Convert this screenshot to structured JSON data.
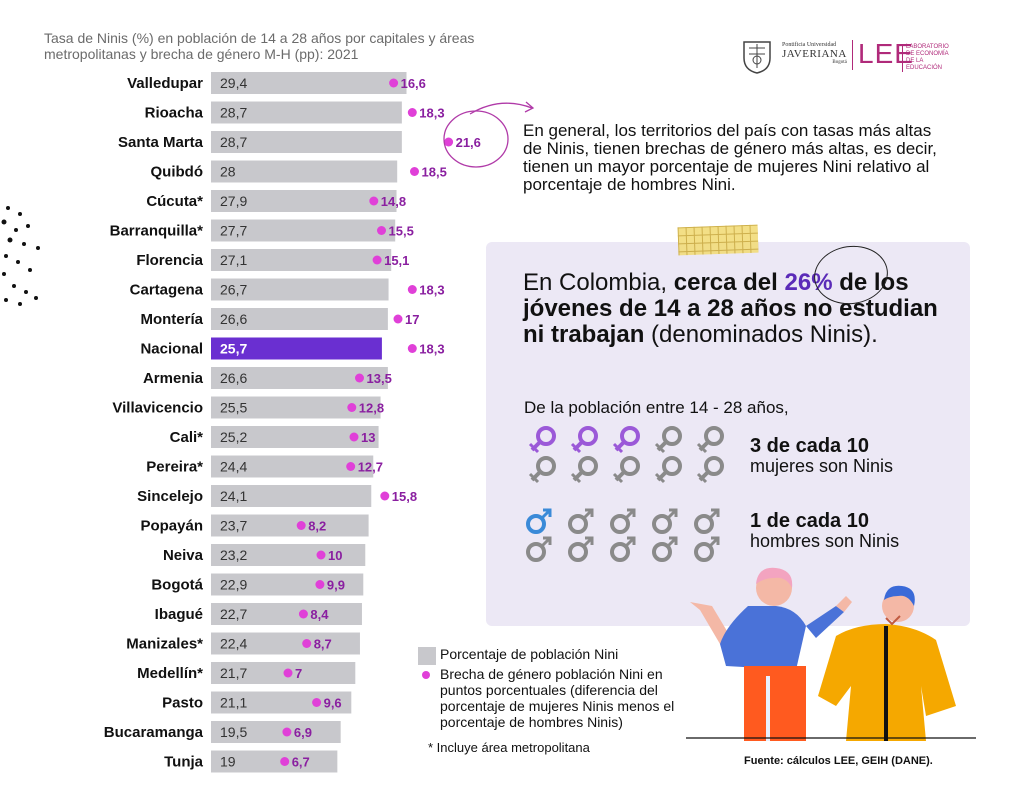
{
  "title": "Tasa de Ninis (%) en población de 14 a 28 años por capitales y áreas metropolitanas y brecha de género M-H (pp): 2021",
  "logos": {
    "javeriana_line1": "Pontificia Universidad",
    "javeriana_line2": "JAVERIANA",
    "javeriana_line3": "Bogotá",
    "lee": "LEE",
    "lee_sub": "LABORATORIO DE ECONOMÍA DE LA EDUCACIÓN"
  },
  "chart_data": {
    "type": "bar",
    "orientation": "horizontal",
    "categories": [
      "Valledupar",
      "Rioacha",
      "Santa Marta",
      "Quibdó",
      "Cúcuta*",
      "Barranquilla*",
      "Florencia",
      "Cartagena",
      "Montería",
      "Nacional",
      "Armenia",
      "Villavicencio",
      "Cali*",
      "Pereira*",
      "Sincelejo",
      "Popayán",
      "Neiva",
      "Bogotá",
      "Ibagué",
      "Manizales*",
      "Medellín*",
      "Pasto",
      "Bucaramanga",
      "Tunja"
    ],
    "series": [
      {
        "name": "Porcentaje de población Nini",
        "values": [
          29.4,
          28.7,
          28.7,
          28,
          27.9,
          27.7,
          27.1,
          26.7,
          26.6,
          25.7,
          26.6,
          25.5,
          25.2,
          24.4,
          24.1,
          23.7,
          23.2,
          22.9,
          22.7,
          22.4,
          21.7,
          21.1,
          19.5,
          19
        ],
        "labels": [
          "29,4",
          "28,7",
          "28,7",
          "28",
          "27,9",
          "27,7",
          "27,1",
          "26,7",
          "26,6",
          "25,7",
          "26,6",
          "25,5",
          "25,2",
          "24,4",
          "24,1",
          "23,7",
          "23,2",
          "22,9",
          "22,7",
          "22,4",
          "21,7",
          "21,1",
          "19,5",
          "19"
        ]
      },
      {
        "name": "Brecha de género población Nini en puntos porcentuales (diferencia del porcentaje de mujeres Ninis menos el porcentaje de hombres Ninis)",
        "values": [
          16.6,
          18.3,
          21.6,
          18.5,
          14.8,
          15.5,
          15.1,
          18.3,
          17,
          18.3,
          13.5,
          12.8,
          13,
          12.7,
          15.8,
          8.2,
          10,
          9.9,
          8.4,
          8.7,
          7,
          9.6,
          6.9,
          6.7
        ],
        "labels": [
          "16,6",
          "18,3",
          "21,6",
          "18,5",
          "14,8",
          "15,5",
          "15,1",
          "18,3",
          "17",
          "18,3",
          "13,5",
          "12,8",
          "13",
          "12,7",
          "15,8",
          "8,2",
          "10",
          "9,9",
          "8,4",
          "8,7",
          "7",
          "9,6",
          "6,9",
          "6,7"
        ]
      }
    ],
    "highlight": "Nacional",
    "colors": {
      "bar": "#c8c8cc",
      "highlight_bar": "#6a2fd1",
      "dot": "#e040d8",
      "gap_label": "#8a1fa0"
    }
  },
  "legend": {
    "bar_label": "Porcentaje de población Nini",
    "dot_label": "Brecha de género población Nini en puntos porcentuales (diferencia del porcentaje de mujeres Ninis menos el porcentaje de hombres Ninis)",
    "note": "* Incluye área metropolitana"
  },
  "explain": "En general, los territorios del país con tasas más altas de Ninis, tienen brechas de género más altas, es decir, tienen un mayor porcentaje de mujeres Nini relativo al porcentaje de hombres Nini.",
  "headline": {
    "part1": "En Colombia, ",
    "bold1": "cerca del ",
    "pct": "26%",
    "bold2": " de los jóvenes de 14 a 28 años no estudian ni trabajan",
    "part2": " (denominados Ninis)."
  },
  "subhead": "De la población entre 14 - 28 años,",
  "stats": {
    "women_bold": "3 de cada 10",
    "women_text": "mujeres son Ninis",
    "men_bold": "1 de cada 10",
    "men_text": "hombres son Ninis"
  },
  "source": "Fuente: cálculos LEE, GEIH (DANE)."
}
